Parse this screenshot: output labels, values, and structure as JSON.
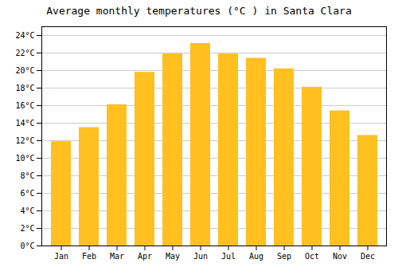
{
  "chart_data": {
    "type": "bar",
    "title": "Average monthly temperatures (°C ) in Santa Clara",
    "categories": [
      "Jan",
      "Feb",
      "Mar",
      "Apr",
      "May",
      "Jun",
      "Jul",
      "Aug",
      "Sep",
      "Oct",
      "Nov",
      "Dec"
    ],
    "values": [
      11.9,
      13.5,
      16.1,
      19.8,
      21.9,
      23.1,
      21.9,
      21.4,
      20.2,
      18.1,
      15.4,
      12.6
    ],
    "color": "#FFC020",
    "ylim": [
      0,
      25
    ],
    "yticks": [
      {
        "value": 0,
        "label": "0°C"
      },
      {
        "value": 2,
        "label": "2°C"
      },
      {
        "value": 4,
        "label": "4°C"
      },
      {
        "value": 6,
        "label": "6°C"
      },
      {
        "value": 8,
        "label": "8°C"
      },
      {
        "value": 10,
        "label": "10°C"
      },
      {
        "value": 12,
        "label": "12°C"
      },
      {
        "value": 14,
        "label": "14°C"
      },
      {
        "value": 16,
        "label": "16°C"
      },
      {
        "value": 18,
        "label": "18°C"
      },
      {
        "value": 20,
        "label": "20°C"
      },
      {
        "value": 22,
        "label": "22°C"
      },
      {
        "value": 24,
        "label": "24°C"
      }
    ],
    "grid": true
  }
}
